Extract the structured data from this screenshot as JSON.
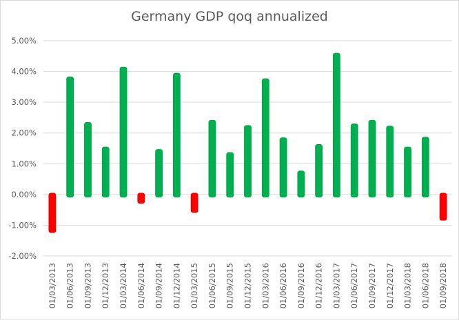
{
  "chart_data": {
    "type": "bar",
    "title": "Germany GDP qoq annualized",
    "xlabel": "",
    "ylabel": "",
    "ylim": [
      -0.02,
      0.05
    ],
    "y_ticks": [
      "5.00%",
      "4.00%",
      "3.00%",
      "2.00%",
      "1.00%",
      "0.00%",
      "-1.00%",
      "-2.00%"
    ],
    "y_tick_values": [
      0.05,
      0.04,
      0.03,
      0.02,
      0.01,
      0.0,
      -0.01,
      -0.02
    ],
    "grid": true,
    "legend": "none",
    "positive_color": "#00b050",
    "negative_color": "#ff0000",
    "categories": [
      "01/03/2013",
      "01/06/2013",
      "01/09/2013",
      "01/12/2013",
      "01/03/2014",
      "01/06/2014",
      "01/09/2014",
      "01/12/2014",
      "01/03/2015",
      "01/06/2015",
      "01/09/2015",
      "01/12/2015",
      "01/03/2016",
      "01/06/2016",
      "01/09/2016",
      "01/12/2016",
      "01/03/2017",
      "01/06/2017",
      "01/09/2017",
      "01/12/2017",
      "01/03/2018",
      "01/06/2018",
      "01/09/2018"
    ],
    "values": [
      -0.0115,
      0.0378,
      0.023,
      0.015,
      0.041,
      -0.002,
      0.0142,
      0.039,
      -0.005,
      0.0237,
      0.0132,
      0.022,
      0.0372,
      0.018,
      0.0072,
      0.0158,
      0.0455,
      0.0225,
      0.0237,
      0.0218,
      0.015,
      0.0182,
      -0.0075
    ]
  }
}
